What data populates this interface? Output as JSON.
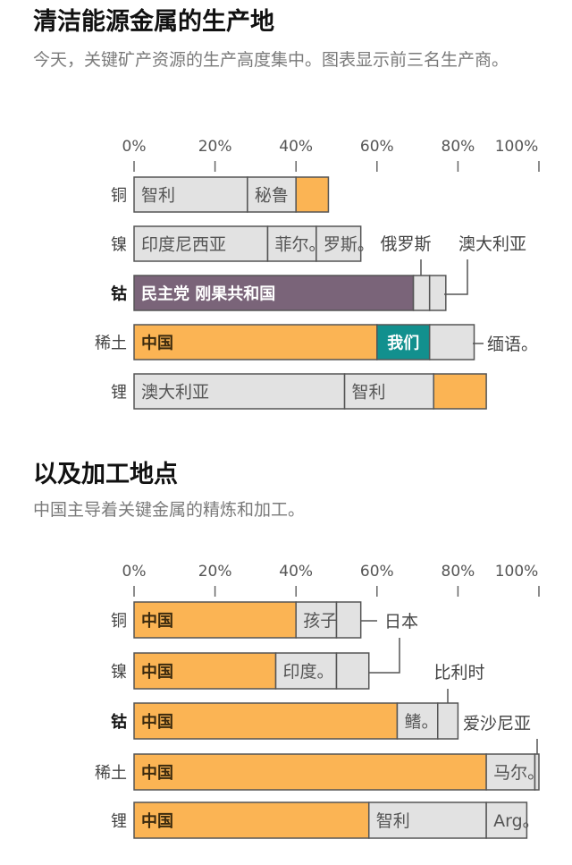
{
  "colors": {
    "other": "#e2e2e2",
    "china": "#fbb454",
    "drc": "#7a6479",
    "us": "#12908e",
    "border": "#555555",
    "text": "#555555",
    "china_text": "#3b2a0e"
  },
  "sections": [
    {
      "title": "清洁能源金属的生产地",
      "subtitle": "今天，关键矿产资源的生产高度集中。图表显示前三名生产商。"
    },
    {
      "title": "以及加工地点",
      "subtitle": "中国主导着关键金属的精炼和加工。"
    }
  ],
  "chart_data": [
    {
      "type": "bar",
      "orientation": "horizontal-stacked",
      "xlim": [
        0,
        100
      ],
      "ticks": [
        "0%",
        "20%",
        "40%",
        "60%",
        "80%",
        "100%"
      ],
      "categories": [
        "铜",
        "镍",
        "钴",
        "稀土",
        "锂"
      ],
      "highlight_category": "钴",
      "rows": [
        {
          "segments": [
            {
              "label": "智利",
              "value": 28,
              "color": "other"
            },
            {
              "label": "秘鲁",
              "value": 12,
              "color": "other"
            },
            {
              "label": "",
              "value": 8,
              "color": "china"
            }
          ]
        },
        {
          "segments": [
            {
              "label": "印度尼西亚",
              "value": 33,
              "color": "other"
            },
            {
              "label": "菲尔。",
              "value": 12,
              "color": "other"
            },
            {
              "label": "罗斯。",
              "value": 11,
              "color": "other"
            }
          ]
        },
        {
          "segments": [
            {
              "label": "民主党 刚果共和国",
              "value": 69,
              "color": "drc"
            },
            {
              "label": "",
              "value": 4,
              "color": "other"
            },
            {
              "label": "",
              "value": 4,
              "color": "other"
            }
          ]
        },
        {
          "segments": [
            {
              "label": "中国",
              "value": 60,
              "color": "china"
            },
            {
              "label": "我们",
              "value": 13,
              "color": "us"
            },
            {
              "label": "",
              "value": 11,
              "color": "other"
            }
          ]
        },
        {
          "segments": [
            {
              "label": "澳大利亚",
              "value": 52,
              "color": "other"
            },
            {
              "label": "智利",
              "value": 22,
              "color": "other"
            },
            {
              "label": "",
              "value": 13,
              "color": "china"
            }
          ]
        }
      ],
      "callouts": [
        "俄罗斯",
        "澳大利亚",
        "缅语。"
      ]
    },
    {
      "type": "bar",
      "orientation": "horizontal-stacked",
      "xlim": [
        0,
        100
      ],
      "ticks": [
        "0%",
        "20%",
        "40%",
        "60%",
        "80%",
        "100%"
      ],
      "categories": [
        "铜",
        "镍",
        "钴",
        "稀土",
        "锂"
      ],
      "highlight_category": "钴",
      "rows": [
        {
          "segments": [
            {
              "label": "中国",
              "value": 40,
              "color": "china"
            },
            {
              "label": "孩子。",
              "value": 10,
              "color": "other"
            },
            {
              "label": "",
              "value": 6,
              "color": "other"
            }
          ]
        },
        {
          "segments": [
            {
              "label": "中国",
              "value": 35,
              "color": "china"
            },
            {
              "label": "印度。",
              "value": 15,
              "color": "other"
            },
            {
              "label": "",
              "value": 8,
              "color": "other"
            }
          ]
        },
        {
          "segments": [
            {
              "label": "中国",
              "value": 65,
              "color": "china"
            },
            {
              "label": "鳍。",
              "value": 10,
              "color": "other"
            },
            {
              "label": "",
              "value": 5,
              "color": "other"
            }
          ]
        },
        {
          "segments": [
            {
              "label": "中国",
              "value": 87,
              "color": "china"
            },
            {
              "label": "马尔。",
              "value": 12,
              "color": "other"
            },
            {
              "label": "",
              "value": 1,
              "color": "other"
            }
          ]
        },
        {
          "segments": [
            {
              "label": "中国",
              "value": 58,
              "color": "china"
            },
            {
              "label": "智利",
              "value": 29,
              "color": "other"
            },
            {
              "label": "Arg。",
              "value": 10,
              "color": "other"
            }
          ]
        }
      ],
      "callouts": [
        "日本",
        "比利时",
        "爱沙尼亚"
      ]
    }
  ]
}
